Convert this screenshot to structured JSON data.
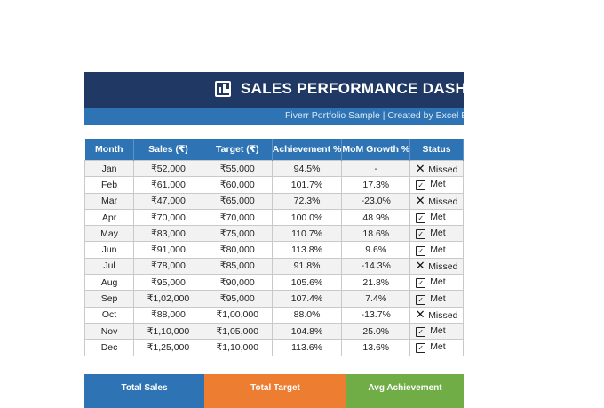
{
  "header": {
    "title": "SALES PERFORMANCE DASHBOARD",
    "subtitle": "Fiverr Portfolio Sample  |  Created by Excel Expert"
  },
  "table": {
    "columns": [
      "Month",
      "Sales (₹)",
      "Target (₹)",
      "Achievement %",
      "MoM Growth %",
      "Status"
    ],
    "rows": [
      {
        "month": "Jan",
        "sales": "₹52,000",
        "target": "₹55,000",
        "achievement": "94.5%",
        "growth": "-",
        "status": "Missed",
        "status_icon": "x-icon"
      },
      {
        "month": "Feb",
        "sales": "₹61,000",
        "target": "₹60,000",
        "achievement": "101.7%",
        "growth": "17.3%",
        "status": "Met",
        "status_icon": "check-box-icon"
      },
      {
        "month": "Mar",
        "sales": "₹47,000",
        "target": "₹65,000",
        "achievement": "72.3%",
        "growth": "-23.0%",
        "status": "Missed",
        "status_icon": "x-icon"
      },
      {
        "month": "Apr",
        "sales": "₹70,000",
        "target": "₹70,000",
        "achievement": "100.0%",
        "growth": "48.9%",
        "status": "Met",
        "status_icon": "check-box-icon"
      },
      {
        "month": "May",
        "sales": "₹83,000",
        "target": "₹75,000",
        "achievement": "110.7%",
        "growth": "18.6%",
        "status": "Met",
        "status_icon": "check-box-icon"
      },
      {
        "month": "Jun",
        "sales": "₹91,000",
        "target": "₹80,000",
        "achievement": "113.8%",
        "growth": "9.6%",
        "status": "Met",
        "status_icon": "check-box-icon"
      },
      {
        "month": "Jul",
        "sales": "₹78,000",
        "target": "₹85,000",
        "achievement": "91.8%",
        "growth": "-14.3%",
        "status": "Missed",
        "status_icon": "x-icon"
      },
      {
        "month": "Aug",
        "sales": "₹95,000",
        "target": "₹90,000",
        "achievement": "105.6%",
        "growth": "21.8%",
        "status": "Met",
        "status_icon": "check-box-icon"
      },
      {
        "month": "Sep",
        "sales": "₹1,02,000",
        "target": "₹95,000",
        "achievement": "107.4%",
        "growth": "7.4%",
        "status": "Met",
        "status_icon": "check-box-icon"
      },
      {
        "month": "Oct",
        "sales": "₹88,000",
        "target": "₹1,00,000",
        "achievement": "88.0%",
        "growth": "-13.7%",
        "status": "Missed",
        "status_icon": "x-icon"
      },
      {
        "month": "Nov",
        "sales": "₹1,10,000",
        "target": "₹1,05,000",
        "achievement": "104.8%",
        "growth": "25.0%",
        "status": "Met",
        "status_icon": "check-box-icon"
      },
      {
        "month": "Dec",
        "sales": "₹1,25,000",
        "target": "₹1,10,000",
        "achievement": "113.6%",
        "growth": "13.6%",
        "status": "Met",
        "status_icon": "check-box-icon"
      }
    ]
  },
  "cards": [
    {
      "label": "Total Sales",
      "value": "",
      "color": "#2e74b5"
    },
    {
      "label": "Total Target",
      "value": "",
      "color": "#ed7d31"
    },
    {
      "label": "Avg Achievement",
      "value": "",
      "color": "#70ad47"
    }
  ],
  "colors": {
    "title_bg": "#1f3864",
    "subtitle_bg": "#2e74b5",
    "header_bg": "#2e74b5"
  }
}
